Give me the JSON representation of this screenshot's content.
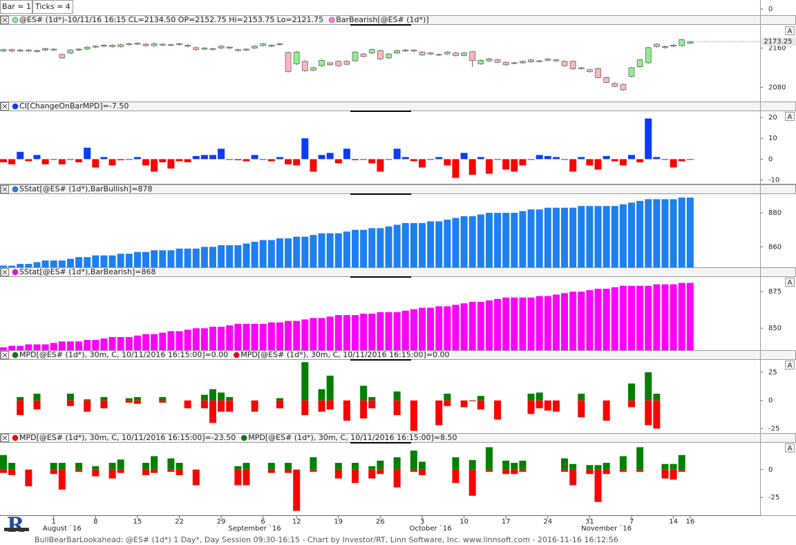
{
  "header": {
    "bar": "Bar = 1",
    "ticks": "Ticks = 4",
    "yticks": [
      0
    ]
  },
  "chart_data": [
    {
      "type": "candlestick",
      "legend": [
        "@ES# (1d*)-10/11/16 16:15 CL=2134.50 OP=2152.75 Hi=2153.75 Lo=2121.75",
        "BarBearish[@ES# (1d*)]"
      ],
      "legend_colors": [
        "#90ee90",
        "#ff80e0"
      ],
      "up_color": "#90ee90",
      "down_color": "#ffb6c1",
      "open": [
        2154,
        2157,
        2154,
        2156,
        2153,
        2156,
        2158,
        2147,
        2150,
        2156,
        2158,
        2162,
        2164,
        2166,
        2163,
        2167,
        2168,
        2168,
        2165,
        2168,
        2166,
        2167,
        2166,
        2161,
        2158,
        2159,
        2160,
        2162,
        2157,
        2156,
        2160,
        2165,
        2166,
        2167,
        2151,
        2128,
        2133,
        2115,
        2124,
        2130,
        2133,
        2133,
        2134,
        2148,
        2150,
        2155,
        2140,
        2150,
        2154,
        2156,
        2152,
        2148,
        2147,
        2148,
        2150,
        2145,
        2152.75,
        2128,
        2134,
        2136,
        2131,
        2130,
        2130,
        2132,
        2134,
        2135,
        2136,
        2133,
        2133,
        2120,
        2116,
        2118,
        2100,
        2088,
        2086,
        2102,
        2122,
        2130,
        2163,
        2161,
        2164,
        2165,
        2170
      ],
      "high": [
        2159,
        2159,
        2158,
        2158,
        2157,
        2161,
        2160,
        2149,
        2158,
        2160,
        2164,
        2166,
        2168,
        2168,
        2169,
        2171,
        2172,
        2170,
        2171,
        2170,
        2169,
        2171,
        2168,
        2163,
        2162,
        2161,
        2166,
        2164,
        2159,
        2160,
        2166,
        2171,
        2168,
        2171,
        2153,
        2154,
        2135,
        2122,
        2137,
        2132,
        2135,
        2135,
        2154,
        2150,
        2159,
        2157,
        2150,
        2157,
        2158,
        2158,
        2154,
        2152,
        2149,
        2154,
        2152,
        2152,
        2153.75,
        2137,
        2140,
        2138,
        2133,
        2132,
        2135,
        2138,
        2136,
        2140,
        2138,
        2135,
        2135,
        2122,
        2118,
        2120,
        2102,
        2090,
        2088,
        2122,
        2138,
        2163,
        2170,
        2165,
        2168,
        2179,
        2175
      ],
      "low": [
        2152,
        2152,
        2152,
        2152,
        2151,
        2154,
        2154,
        2138,
        2148,
        2154,
        2156,
        2160,
        2162,
        2161,
        2161,
        2165,
        2166,
        2163,
        2163,
        2164,
        2164,
        2165,
        2162,
        2155,
        2156,
        2155,
        2158,
        2158,
        2153,
        2154,
        2158,
        2163,
        2162,
        2165,
        2110,
        2126,
        2112,
        2113,
        2122,
        2124,
        2122,
        2125,
        2132,
        2141,
        2148,
        2136,
        2138,
        2148,
        2152,
        2152,
        2144,
        2146,
        2144,
        2146,
        2143,
        2143,
        2121.75,
        2126,
        2132,
        2129,
        2124,
        2127,
        2128,
        2130,
        2131,
        2133,
        2132,
        2122,
        2116,
        2116,
        2110,
        2098,
        2088,
        2080,
        2073,
        2100,
        2120,
        2128,
        2161,
        2159,
        2162,
        2163,
        2168
      ],
      "close": [
        2157,
        2154,
        2156,
        2154,
        2155,
        2159,
        2156,
        2140,
        2156,
        2158,
        2162,
        2164,
        2166,
        2163,
        2167,
        2169,
        2170,
        2165,
        2169,
        2166,
        2167,
        2169,
        2164,
        2157,
        2160,
        2157,
        2164,
        2160,
        2155,
        2158,
        2164,
        2169,
        2164,
        2169,
        2112,
        2152,
        2114,
        2120,
        2135,
        2126,
        2124,
        2127,
        2152,
        2143,
        2157,
        2138,
        2148,
        2155,
        2156,
        2154,
        2146,
        2150,
        2146,
        2152,
        2145,
        2150,
        2134.5,
        2135,
        2138,
        2131,
        2126,
        2129,
        2133,
        2136,
        2133,
        2138,
        2134,
        2124,
        2118,
        2118,
        2112,
        2100,
        2090,
        2082,
        2075,
        2120,
        2136,
        2161,
        2168,
        2163,
        2166,
        2177,
        2173.25
      ],
      "ylim": [
        2051,
        2206
      ],
      "yticks": [
        2160,
        2080
      ],
      "scale_button": "A"
    },
    {
      "type": "bar",
      "legend": "CI[ChangeOnBarMPD]=-7.50",
      "positive_color": "#0a3cff",
      "negative_color": "#ff0000",
      "values": [
        -1.5,
        -2.5,
        3.5,
        -1,
        2,
        -2.5,
        0,
        -2.5,
        0,
        -1.5,
        5.5,
        -4,
        1,
        -3,
        -0.5,
        0,
        1,
        -3,
        -6,
        -1.5,
        -4.5,
        -1,
        -1.5,
        1.5,
        2,
        2,
        5,
        0,
        -0.5,
        -1,
        2,
        0,
        -1,
        1,
        -2.5,
        -3,
        10,
        -6,
        2,
        3,
        -2,
        5,
        -0.5,
        0,
        -2,
        -6,
        0,
        5,
        1,
        -1,
        -4,
        0,
        1,
        -3,
        -9,
        3,
        -7.5,
        1,
        -7,
        0,
        -5,
        -6,
        -3,
        0,
        2,
        1.5,
        1,
        0,
        -6,
        1,
        -3,
        -5,
        1.5,
        -1,
        -3,
        2,
        -1.5,
        19.5,
        1,
        0,
        -4,
        -1,
        0
      ],
      "ylim": [
        -11.8,
        23
      ],
      "yticks": [
        20,
        10,
        0,
        -10
      ],
      "scale_button": "A"
    },
    {
      "type": "bar",
      "legend": "SStat[@ES# (1d*),BarBullish]=878",
      "color": "#1e7ff0",
      "values": [
        849,
        849,
        850,
        850,
        851,
        852,
        852,
        852,
        853,
        854,
        854,
        855,
        855,
        855,
        856,
        856,
        857,
        857,
        858,
        858,
        858,
        859,
        859,
        859,
        860,
        860,
        861,
        861,
        861,
        862,
        863,
        864,
        864,
        865,
        865,
        866,
        866,
        867,
        868,
        868,
        868,
        869,
        870,
        870,
        871,
        871,
        872,
        873,
        874,
        874,
        874,
        875,
        875,
        876,
        877,
        878,
        878,
        879,
        880,
        880,
        880,
        880,
        881,
        882,
        882,
        883,
        883,
        883,
        883,
        884,
        884,
        884,
        884,
        884,
        885,
        886,
        887,
        888,
        888,
        888,
        888,
        889,
        889
      ],
      "ylim": [
        848,
        891
      ],
      "yticks": [
        880,
        860
      ]
    },
    {
      "type": "bar",
      "legend": "SStat[@ES# (1d*),BarBearish]=868",
      "color": "#ff00ff",
      "values": [
        837,
        838,
        838,
        839,
        839,
        839,
        840,
        841,
        841,
        841,
        842,
        842,
        843,
        844,
        844,
        844,
        845,
        846,
        846,
        847,
        848,
        848,
        849,
        850,
        850,
        851,
        851,
        852,
        853,
        853,
        853,
        853,
        854,
        854,
        855,
        855,
        856,
        857,
        857,
        858,
        859,
        859,
        859,
        860,
        860,
        861,
        861,
        861,
        862,
        863,
        864,
        864,
        865,
        865,
        866,
        867,
        868,
        868,
        869,
        870,
        871,
        871,
        871,
        871,
        872,
        872,
        873,
        874,
        875,
        875,
        876,
        877,
        877,
        878,
        879,
        879,
        879,
        879,
        880,
        880,
        880,
        881,
        881
      ],
      "ylim": [
        835,
        885
      ],
      "yticks": [
        875,
        850
      ],
      "scale_button": "A"
    },
    {
      "type": "bar",
      "series": [
        {
          "name": "MPD[@ES# (1d*), 30m, C, 10/11/2016 16:15:00]=0.00",
          "color": "#008000",
          "values": [
            null,
            null,
            3,
            null,
            6,
            null,
            null,
            null,
            6,
            null,
            1,
            null,
            3,
            null,
            null,
            2,
            3,
            null,
            null,
            3,
            null,
            null,
            null,
            null,
            5,
            10,
            7,
            3,
            null,
            null,
            null,
            null,
            null,
            2,
            null,
            null,
            34,
            null,
            10,
            22,
            null,
            null,
            null,
            13,
            3,
            null,
            null,
            8,
            null,
            null,
            null,
            null,
            null,
            6,
            null,
            null,
            0,
            4,
            null,
            null,
            null,
            null,
            null,
            6,
            7,
            null,
            null,
            null,
            null,
            6,
            null,
            null,
            null,
            null,
            null,
            15,
            null,
            25,
            6,
            null,
            null,
            null,
            null
          ]
        },
        {
          "name": "MPD[@ES# (1d*), 30m, C, 10/11/2016 16:15:00]=0.00",
          "color": "#ff0000",
          "values": [
            null,
            null,
            -13,
            null,
            -8,
            null,
            null,
            null,
            -5,
            null,
            -10,
            null,
            -7,
            null,
            null,
            -2,
            -3,
            null,
            null,
            -2,
            null,
            null,
            -7,
            null,
            -7,
            -20,
            -10,
            -10,
            null,
            null,
            -10,
            null,
            null,
            -7,
            null,
            null,
            -13,
            null,
            -10,
            -8,
            null,
            -18,
            null,
            -16,
            -7,
            null,
            null,
            -13,
            null,
            -27,
            null,
            null,
            -22,
            -5,
            null,
            -6,
            0,
            -8,
            null,
            -17,
            null,
            null,
            null,
            -12,
            -7,
            -9,
            -10,
            null,
            null,
            -15,
            null,
            null,
            -18,
            null,
            null,
            -6,
            null,
            -22,
            -25,
            null,
            null,
            null,
            null
          ]
        }
      ],
      "ylim": [
        -29,
        36
      ],
      "yticks": [
        25,
        0,
        -25
      ],
      "scale_button": "A"
    },
    {
      "type": "bar",
      "series": [
        {
          "name": "MPD[@ES# (1d*), 30m, C, 10/11/2016 16:15:00]=-23.50",
          "color": "#ff0000",
          "values": [
            -3,
            -5,
            null,
            -15,
            null,
            null,
            -4,
            -18,
            null,
            -2,
            null,
            -6,
            null,
            -8,
            -3,
            null,
            null,
            -5,
            -3,
            null,
            -2,
            -5,
            null,
            -14,
            null,
            null,
            null,
            null,
            -14,
            -14,
            null,
            null,
            -3,
            null,
            -3,
            -37,
            null,
            -2,
            null,
            null,
            -8,
            null,
            -12,
            null,
            -8,
            -4,
            null,
            -16,
            null,
            -2,
            -5,
            null,
            null,
            null,
            -12,
            null,
            -23.5,
            null,
            -2,
            null,
            -4,
            -4,
            -2,
            null,
            null,
            null,
            null,
            -2,
            -14,
            null,
            -4,
            -29,
            -4,
            null,
            -2,
            null,
            -2,
            null,
            null,
            -8,
            -9,
            -2,
            null
          ]
        },
        {
          "name": "MPD[@ES# (1d*), 30m, C, 10/11/2016 16:15:00]=8.50",
          "color": "#008000",
          "values": [
            13,
            6,
            null,
            null,
            null,
            null,
            6,
            6,
            null,
            6,
            null,
            3,
            null,
            6,
            9,
            null,
            null,
            6,
            12,
            null,
            10,
            6,
            null,
            null,
            null,
            null,
            null,
            null,
            3,
            6,
            null,
            null,
            6,
            null,
            6,
            null,
            null,
            11,
            null,
            null,
            6,
            null,
            6,
            null,
            3,
            8,
            null,
            11,
            null,
            17,
            7,
            null,
            null,
            null,
            11,
            null,
            8.5,
            null,
            20,
            null,
            8,
            6,
            8,
            null,
            null,
            null,
            null,
            10,
            5,
            null,
            4,
            4,
            6,
            null,
            12,
            null,
            20,
            null,
            null,
            5,
            5,
            13,
            null
          ]
        }
      ],
      "ylim": [
        -41,
        24
      ],
      "yticks": [
        0,
        -25
      ],
      "scale_button": "A"
    }
  ],
  "x_axis": {
    "categories": [
      null,
      null,
      null,
      null,
      null,
      null,
      "1",
      null,
      null,
      null,
      null,
      "8",
      null,
      null,
      null,
      null,
      "15",
      null,
      null,
      null,
      null,
      "22",
      null,
      null,
      null,
      null,
      "29",
      null,
      null,
      null,
      null,
      "6",
      null,
      null,
      null,
      "12",
      null,
      null,
      null,
      null,
      "19",
      null,
      null,
      null,
      null,
      "26",
      null,
      null,
      null,
      null,
      "3",
      null,
      null,
      null,
      null,
      "10",
      null,
      null,
      null,
      null,
      "17",
      null,
      null,
      null,
      null,
      "24",
      null,
      null,
      null,
      null,
      "31",
      null,
      null,
      null,
      null,
      "7",
      null,
      null,
      null,
      null,
      "14",
      null,
      "16"
    ],
    "months": [
      null,
      null,
      null,
      null,
      null,
      null,
      null,
      "August `16",
      null,
      null,
      null,
      null,
      null,
      null,
      null,
      null,
      null,
      null,
      null,
      null,
      null,
      null,
      null,
      null,
      null,
      null,
      null,
      null,
      null,
      null,
      "September `16",
      null,
      null,
      null,
      null,
      null,
      null,
      null,
      null,
      null,
      null,
      null,
      null,
      null,
      null,
      null,
      null,
      null,
      null,
      null,
      null,
      "October `16",
      null,
      null,
      null,
      null,
      null,
      null,
      null,
      null,
      null,
      null,
      null,
      null,
      null,
      null,
      null,
      null,
      null,
      null,
      null,
      null,
      "November `16",
      null,
      null,
      null,
      null,
      null,
      null,
      null,
      null,
      null,
      null
    ]
  },
  "footer": "BullBearBarLookahead: @ES# (1d*) 1 Day*, Day Session 09:30-16:15 - Chart by Investor/RT, Linn Software, Inc. www.linnsoft.com - 2016-11-16 16:12:56"
}
